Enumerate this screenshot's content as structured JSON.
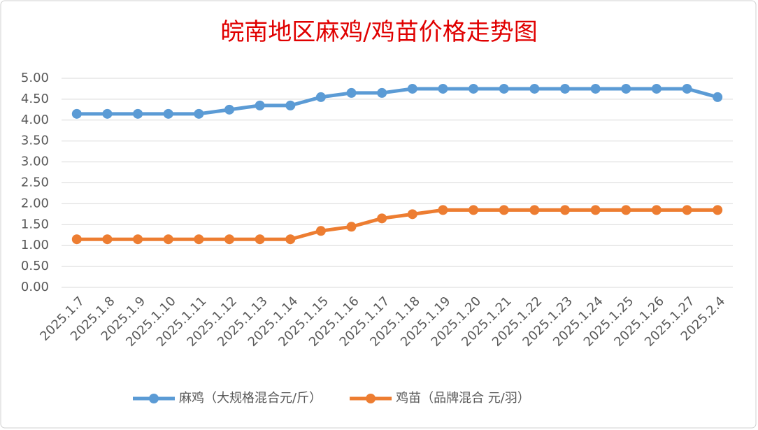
{
  "chart_data": {
    "type": "line",
    "title": "皖南地区麻鸡/鸡苗价格走势图",
    "categories": [
      "2025.1.7",
      "2025.1.8",
      "2025.1.9",
      "2025.1.10",
      "2025.1.11",
      "2025.1.12",
      "2025.1.13",
      "2025.1.14",
      "2025.1.15",
      "2025.1.16",
      "2025.1.17",
      "2025.1.18",
      "2025.1.19",
      "2025.1.20",
      "2025.1.21",
      "2025.1.22",
      "2025.1.23",
      "2025.1.24",
      "2025.1.25",
      "2025.1.26",
      "2025.1.27",
      "2025.2.4"
    ],
    "series": [
      {
        "name": "麻鸡（大规格混合元/斤）",
        "color": "#5b9bd5",
        "values": [
          4.15,
          4.15,
          4.15,
          4.15,
          4.15,
          4.25,
          4.35,
          4.35,
          4.55,
          4.65,
          4.65,
          4.75,
          4.75,
          4.75,
          4.75,
          4.75,
          4.75,
          4.75,
          4.75,
          4.75,
          4.75,
          4.55
        ]
      },
      {
        "name": "鸡苗（品牌混合 元/羽）",
        "color": "#ed7d31",
        "values": [
          1.15,
          1.15,
          1.15,
          1.15,
          1.15,
          1.15,
          1.15,
          1.15,
          1.35,
          1.45,
          1.65,
          1.75,
          1.85,
          1.85,
          1.85,
          1.85,
          1.85,
          1.85,
          1.85,
          1.85,
          1.85,
          1.85
        ]
      }
    ],
    "ylim": [
      0,
      5
    ],
    "yticks": [
      {
        "value": 0,
        "label": "0.00"
      },
      {
        "value": 0.5,
        "label": "0.50"
      },
      {
        "value": 1,
        "label": "1.00"
      },
      {
        "value": 1.5,
        "label": "1.50"
      },
      {
        "value": 2,
        "label": "2.00"
      },
      {
        "value": 2.5,
        "label": "2.50"
      },
      {
        "value": 3,
        "label": "3.00"
      },
      {
        "value": 3.5,
        "label": "3.50"
      },
      {
        "value": 4,
        "label": "4.00"
      },
      {
        "value": 4.5,
        "label": "4.50"
      },
      {
        "value": 5,
        "label": "5.00"
      }
    ],
    "grid": true,
    "legend": "bottom",
    "title_color": "#e00000"
  }
}
